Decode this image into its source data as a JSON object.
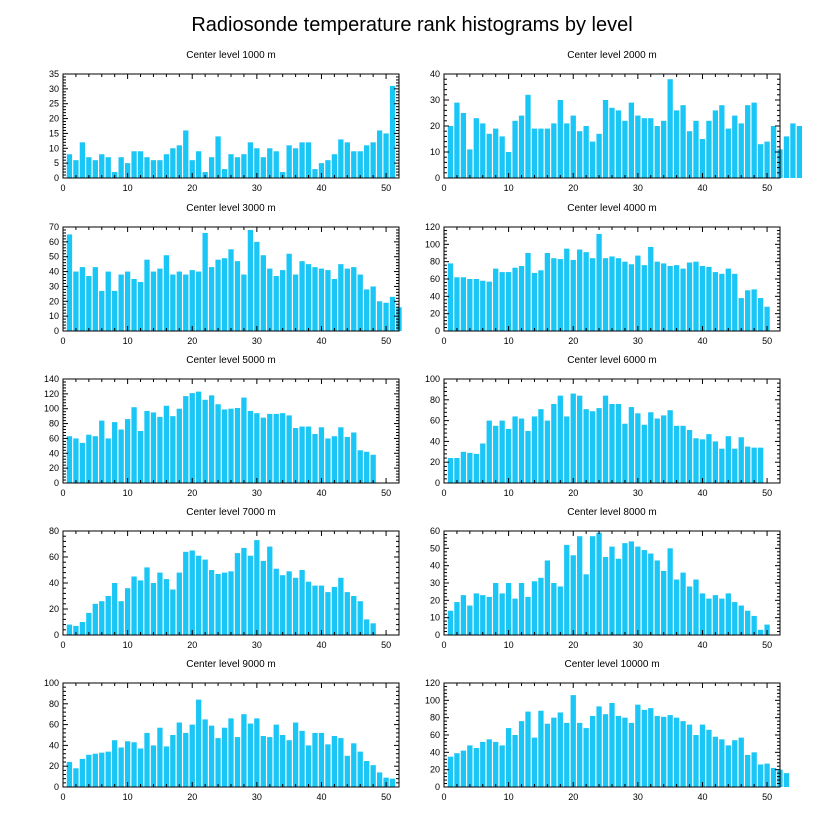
{
  "figure": {
    "title": "Radiosonde temperature rank histograms by level"
  },
  "colors": {
    "bar": "#19c6f5",
    "axis": "#000000",
    "background": "#ffffff"
  },
  "chart_data": [
    {
      "type": "bar",
      "title": "Center level 1000 m",
      "xlim": [
        0,
        52
      ],
      "ylim": [
        0,
        35
      ],
      "xticks": [
        0,
        10,
        20,
        30,
        40,
        50
      ],
      "yticks": [
        0,
        5,
        10,
        15,
        20,
        25,
        30,
        35
      ],
      "values": [
        8,
        6,
        12,
        7,
        6,
        8,
        7,
        2,
        7,
        5,
        9,
        9,
        7,
        6,
        6,
        8,
        10,
        11,
        16,
        6,
        9,
        2,
        7,
        14,
        3,
        8,
        7,
        8,
        12,
        10,
        7,
        10,
        9,
        2,
        11,
        10,
        12,
        12,
        3,
        5,
        6,
        8,
        13,
        12,
        9,
        9,
        11,
        12,
        16,
        15,
        31
      ]
    },
    {
      "type": "bar",
      "title": "Center level 2000 m",
      "xlim": [
        0,
        52
      ],
      "ylim": [
        0,
        40
      ],
      "xticks": [
        0,
        10,
        20,
        30,
        40,
        50
      ],
      "yticks": [
        0,
        10,
        20,
        30,
        40
      ],
      "values": [
        20,
        29,
        25,
        11,
        23,
        21,
        17,
        19,
        16,
        10,
        22,
        24,
        32,
        19,
        19,
        19,
        21,
        30,
        21,
        24,
        18,
        20,
        14,
        17,
        30,
        27,
        26,
        22,
        29,
        24,
        23,
        23,
        20,
        22,
        38,
        26,
        28,
        18,
        22,
        15,
        22,
        26,
        28,
        19,
        24,
        21,
        28,
        29,
        13,
        14,
        20,
        11,
        16,
        21,
        20
      ]
    },
    {
      "type": "bar",
      "title": "Center level 3000 m",
      "xlim": [
        0,
        52
      ],
      "ylim": [
        0,
        70
      ],
      "xticks": [
        0,
        10,
        20,
        30,
        40,
        50
      ],
      "yticks": [
        0,
        10,
        20,
        30,
        40,
        50,
        60,
        70
      ],
      "values": [
        65,
        40,
        43,
        37,
        43,
        27,
        40,
        27,
        38,
        40,
        35,
        33,
        48,
        40,
        42,
        51,
        38,
        40,
        38,
        41,
        40,
        66,
        43,
        48,
        49,
        55,
        47,
        38,
        68,
        60,
        51,
        42,
        37,
        41,
        52,
        38,
        47,
        45,
        43,
        42,
        41,
        35,
        45,
        42,
        43,
        38,
        28,
        30,
        20,
        19,
        23,
        16
      ]
    },
    {
      "type": "bar",
      "title": "Center level 4000 m",
      "xlim": [
        0,
        52
      ],
      "ylim": [
        0,
        120
      ],
      "xticks": [
        0,
        10,
        20,
        30,
        40,
        50
      ],
      "yticks": [
        0,
        20,
        40,
        60,
        80,
        100,
        120
      ],
      "values": [
        78,
        62,
        62,
        60,
        60,
        58,
        57,
        72,
        68,
        68,
        73,
        75,
        90,
        67,
        70,
        90,
        84,
        83,
        95,
        82,
        94,
        91,
        84,
        112,
        84,
        86,
        84,
        80,
        77,
        87,
        76,
        97,
        80,
        78,
        75,
        76,
        72,
        79,
        80,
        75,
        74,
        68,
        66,
        72,
        66,
        38,
        47,
        48,
        38,
        28
      ]
    },
    {
      "type": "bar",
      "title": "Center level 5000 m",
      "xlim": [
        0,
        52
      ],
      "ylim": [
        0,
        140
      ],
      "xticks": [
        0,
        10,
        20,
        30,
        40,
        50
      ],
      "yticks": [
        0,
        20,
        40,
        60,
        80,
        100,
        120,
        140
      ],
      "values": [
        63,
        60,
        54,
        65,
        63,
        84,
        60,
        82,
        72,
        86,
        102,
        70,
        97,
        95,
        89,
        104,
        90,
        100,
        117,
        121,
        123,
        112,
        118,
        106,
        99,
        100,
        101,
        115,
        97,
        94,
        88,
        93,
        93,
        94,
        91,
        74,
        76,
        76,
        66,
        75,
        60,
        63,
        75,
        62,
        68,
        44,
        42,
        38
      ]
    },
    {
      "type": "bar",
      "title": "Center level 6000 m",
      "xlim": [
        0,
        52
      ],
      "ylim": [
        0,
        100
      ],
      "xticks": [
        0,
        10,
        20,
        30,
        40,
        50
      ],
      "yticks": [
        0,
        20,
        40,
        60,
        80,
        100
      ],
      "values": [
        24,
        24,
        30,
        29,
        28,
        38,
        60,
        55,
        60,
        52,
        64,
        62,
        50,
        64,
        71,
        60,
        76,
        84,
        64,
        86,
        84,
        71,
        69,
        72,
        84,
        76,
        76,
        57,
        73,
        67,
        56,
        68,
        62,
        65,
        70,
        55,
        55,
        51,
        43,
        42,
        47,
        40,
        33,
        45,
        33,
        44,
        35,
        34,
        34
      ]
    },
    {
      "type": "bar",
      "title": "Center level 7000 m",
      "xlim": [
        0,
        52
      ],
      "ylim": [
        0,
        80
      ],
      "xticks": [
        0,
        10,
        20,
        30,
        40,
        50
      ],
      "yticks": [
        0,
        20,
        40,
        60,
        80
      ],
      "values": [
        8,
        7,
        10,
        17,
        24,
        26,
        30,
        40,
        26,
        36,
        45,
        42,
        52,
        40,
        48,
        43,
        35,
        48,
        64,
        65,
        61,
        58,
        50,
        47,
        48,
        49,
        63,
        67,
        61,
        73,
        57,
        68,
        51,
        46,
        49,
        44,
        50,
        41,
        38,
        38,
        33,
        37,
        44,
        33,
        30,
        26,
        12,
        9
      ]
    },
    {
      "type": "bar",
      "title": "Center level 8000 m",
      "xlim": [
        0,
        52
      ],
      "ylim": [
        0,
        60
      ],
      "xticks": [
        0,
        10,
        20,
        30,
        40,
        50
      ],
      "yticks": [
        0,
        10,
        20,
        30,
        40,
        50,
        60
      ],
      "values": [
        14,
        19,
        23,
        17,
        24,
        23,
        22,
        30,
        24,
        30,
        21,
        30,
        22,
        31,
        33,
        43,
        30,
        28,
        52,
        46,
        57,
        35,
        57,
        59,
        45,
        51,
        44,
        53,
        54,
        51,
        49,
        47,
        43,
        37,
        50,
        32,
        36,
        28,
        32,
        24,
        21,
        23,
        21,
        24,
        19,
        17,
        14,
        11,
        3,
        6
      ]
    },
    {
      "type": "bar",
      "title": "Center level 9000 m",
      "xlim": [
        0,
        52
      ],
      "ylim": [
        0,
        100
      ],
      "xticks": [
        0,
        10,
        20,
        30,
        40,
        50
      ],
      "yticks": [
        0,
        20,
        40,
        60,
        80,
        100
      ],
      "values": [
        24,
        18,
        27,
        31,
        32,
        33,
        34,
        45,
        38,
        44,
        43,
        37,
        52,
        40,
        57,
        39,
        50,
        62,
        52,
        60,
        84,
        65,
        59,
        47,
        57,
        66,
        48,
        70,
        61,
        66,
        49,
        48,
        60,
        50,
        45,
        62,
        54,
        40,
        52,
        52,
        41,
        49,
        47,
        30,
        42,
        34,
        25,
        21,
        14,
        9,
        8
      ]
    },
    {
      "type": "bar",
      "title": "Center level 10000 m",
      "xlim": [
        0,
        52
      ],
      "ylim": [
        0,
        120
      ],
      "xticks": [
        0,
        10,
        20,
        30,
        40,
        50
      ],
      "yticks": [
        0,
        20,
        40,
        60,
        80,
        100,
        120
      ],
      "values": [
        35,
        39,
        42,
        48,
        45,
        52,
        55,
        52,
        48,
        68,
        60,
        76,
        87,
        57,
        88,
        73,
        80,
        86,
        74,
        106,
        74,
        68,
        82,
        93,
        84,
        97,
        82,
        80,
        74,
        95,
        89,
        91,
        82,
        81,
        83,
        80,
        76,
        72,
        60,
        72,
        66,
        58,
        55,
        48,
        54,
        57,
        37,
        40,
        26,
        27,
        22,
        20,
        16
      ]
    }
  ]
}
